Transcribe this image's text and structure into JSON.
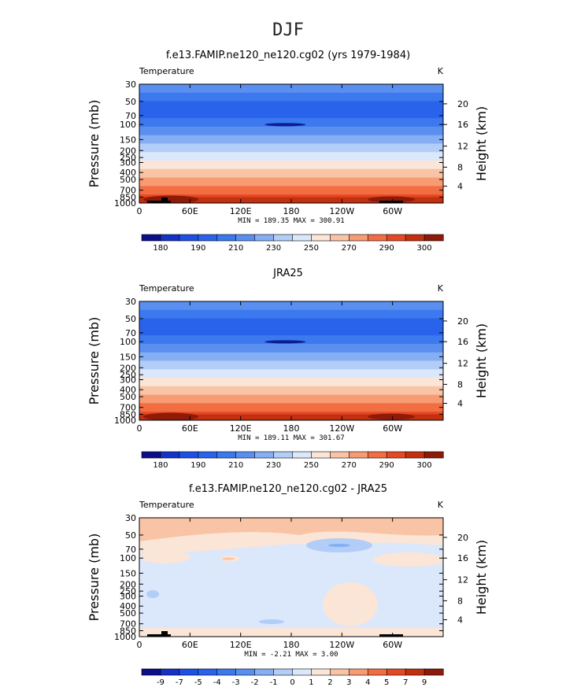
{
  "figure": {
    "suptitle": "DJF"
  },
  "chart_data": [
    {
      "type": "heatmap",
      "title": "f.e13.FAMIP.ne120_ne120.cg02 (yrs 1979-1984)",
      "left_label": "Temperature",
      "units": "K",
      "ylabel": "Pressure (mb)",
      "ylabel_right": "Height (km)",
      "xticks": [
        "0",
        "60E",
        "120E",
        "180",
        "120W",
        "60W"
      ],
      "yticks": [
        "30",
        "50",
        "70",
        "100",
        "150",
        "200",
        "250",
        "300",
        "400",
        "500",
        "700",
        "850",
        "1000"
      ],
      "yticks_right": [
        "20",
        "16",
        "12",
        "8",
        "4"
      ],
      "stats": "MIN = 189.35   MAX = 300.91",
      "colorbar_labels": [
        "180",
        "190",
        "210",
        "230",
        "250",
        "270",
        "290",
        "300"
      ],
      "colorbar_colors": [
        "#0d0f8a",
        "#1432c8",
        "#1f50e6",
        "#2a63eb",
        "#3c78ee",
        "#5a8ff0",
        "#85aef3",
        "#b2cdf7",
        "#dbe8fb",
        "#fbe5d7",
        "#f9c3a6",
        "#f79b73",
        "#f26d42",
        "#e54923",
        "#c3300f",
        "#8e1a08"
      ],
      "band_colors": [
        "#5a8ff0",
        "#3c78ee",
        "#2a63eb",
        "#2a63eb",
        "#3c78ee",
        "#5a8ff0",
        "#85aef3",
        "#b2cdf7",
        "#dbe8fb",
        "#fbe5d7",
        "#f9c3a6",
        "#f79b73",
        "#f26d42",
        "#e54923"
      ]
    },
    {
      "type": "heatmap",
      "title": "JRA25",
      "left_label": "Temperature",
      "units": "K",
      "ylabel": "Pressure (mb)",
      "ylabel_right": "Height (km)",
      "xticks": [
        "0",
        "60E",
        "120E",
        "180",
        "120W",
        "60W"
      ],
      "yticks": [
        "30",
        "50",
        "70",
        "100",
        "150",
        "200",
        "250",
        "300",
        "400",
        "500",
        "700",
        "850",
        "1000"
      ],
      "yticks_right": [
        "20",
        "16",
        "12",
        "8",
        "4"
      ],
      "stats": "MIN = 189.11   MAX = 301.67",
      "colorbar_labels": [
        "180",
        "190",
        "210",
        "230",
        "250",
        "270",
        "290",
        "300"
      ],
      "colorbar_colors": [
        "#0d0f8a",
        "#1432c8",
        "#1f50e6",
        "#2a63eb",
        "#3c78ee",
        "#5a8ff0",
        "#85aef3",
        "#b2cdf7",
        "#dbe8fb",
        "#fbe5d7",
        "#f9c3a6",
        "#f79b73",
        "#f26d42",
        "#e54923",
        "#c3300f",
        "#8e1a08"
      ],
      "band_colors": [
        "#5a8ff0",
        "#3c78ee",
        "#2a63eb",
        "#2a63eb",
        "#3c78ee",
        "#5a8ff0",
        "#85aef3",
        "#b2cdf7",
        "#dbe8fb",
        "#fbe5d7",
        "#f9c3a6",
        "#f79b73",
        "#f26d42",
        "#e54923"
      ]
    },
    {
      "type": "heatmap",
      "title": "f.e13.FAMIP.ne120_ne120.cg02 - JRA25",
      "left_label": "Temperature",
      "units": "K",
      "ylabel": "Pressure (mb)",
      "ylabel_right": "Height (km)",
      "xticks": [
        "0",
        "60E",
        "120E",
        "180",
        "120W",
        "60W"
      ],
      "yticks": [
        "30",
        "50",
        "70",
        "100",
        "150",
        "200",
        "250",
        "300",
        "400",
        "500",
        "700",
        "850",
        "1000"
      ],
      "yticks_right": [
        "20",
        "16",
        "12",
        "8",
        "4"
      ],
      "stats": "MIN =  -2.21   MAX =   3.00",
      "colorbar_labels": [
        "-9",
        "-7",
        "-5",
        "-4",
        "-3",
        "-2",
        "-1",
        "0",
        "1",
        "2",
        "3",
        "4",
        "5",
        "7",
        "9"
      ],
      "colorbar_colors": [
        "#0d0f8a",
        "#1432c8",
        "#1f50e6",
        "#2a63eb",
        "#3c78ee",
        "#5a8ff0",
        "#85aef3",
        "#b2cdf7",
        "#dbe8fb",
        "#fbe5d7",
        "#f9c3a6",
        "#f79b73",
        "#f26d42",
        "#e54923",
        "#c3300f",
        "#8e1a08"
      ],
      "band_colors": [
        "#f9c3a6",
        "#fbe5d7",
        "#dbe8fb",
        "#dbe8fb",
        "#dbe8fb",
        "#dbe8fb",
        "#dbe8fb",
        "#dbe8fb",
        "#dbe8fb",
        "#dbe8fb",
        "#dbe8fb",
        "#dbe8fb",
        "#dbe8fb",
        "#fbe5d7"
      ]
    }
  ]
}
